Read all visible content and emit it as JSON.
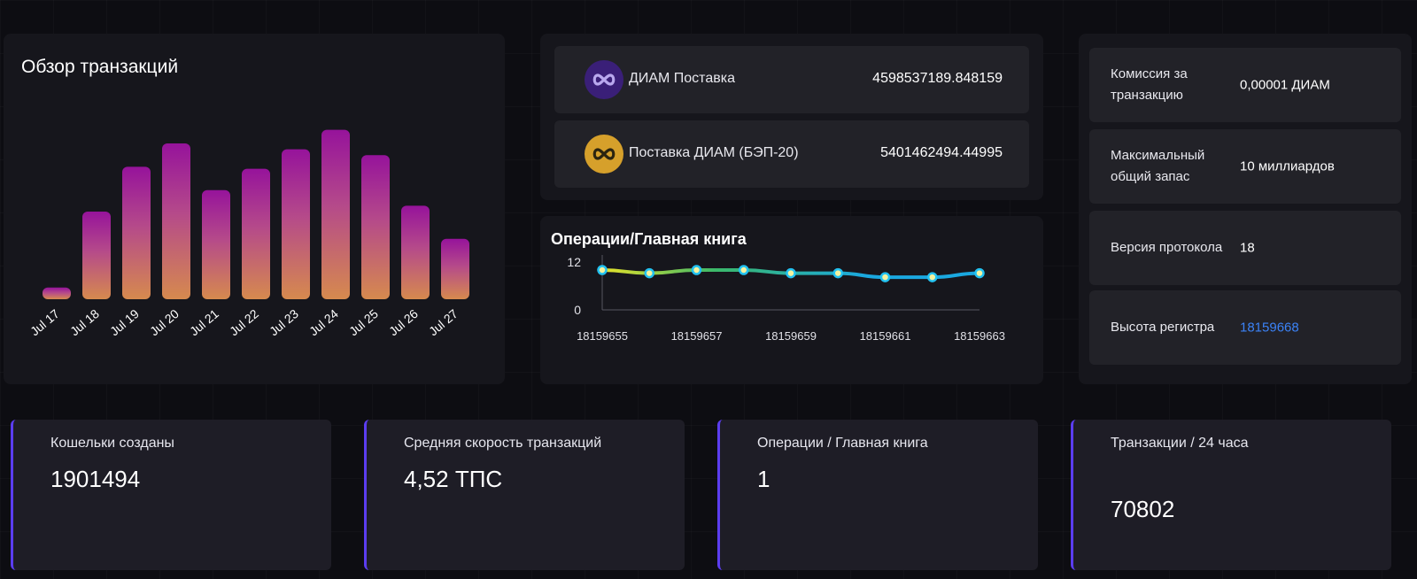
{
  "overview": {
    "title": "Обзор транзакций"
  },
  "chart_data": [
    {
      "type": "bar",
      "title": "Обзор транзакций",
      "categories": [
        "Jul 17",
        "Jul 18",
        "Jul 19",
        "Jul 20",
        "Jul 21",
        "Jul 22",
        "Jul 23",
        "Jul 24",
        "Jul 25",
        "Jul 26",
        "Jul 27"
      ],
      "values": [
        6,
        45,
        68,
        80,
        56,
        67,
        77,
        87,
        74,
        48,
        31
      ],
      "ylim": [
        0,
        100
      ],
      "colors": {
        "top": "#96139b",
        "bottom": "#d68a4e"
      }
    },
    {
      "type": "line",
      "title": "Операции/Главная книга",
      "x": [
        18159655,
        18159656,
        18159657,
        18159658,
        18159659,
        18159660,
        18159661,
        18159662,
        18159663
      ],
      "values": [
        10,
        9.2,
        10,
        10,
        9.2,
        9.2,
        8.2,
        8.2,
        9.2
      ],
      "xticks": [
        "18159655",
        "18159657",
        "18159659",
        "18159661",
        "18159663"
      ],
      "yticks": [
        "0",
        "12"
      ],
      "ylim": [
        0,
        12
      ],
      "colors": {
        "start": "#e6e22a",
        "mid": "#3bb86a",
        "end": "#1aa8e0",
        "marker_fill": "#f3f3a0",
        "marker_stroke": "#22c1f0"
      }
    }
  ],
  "supply": [
    {
      "label": "ДИАМ Поставка",
      "value": "4598537189.848159",
      "icon": "infinity-icon",
      "color": "#3a1f78"
    },
    {
      "label": "Поставка ДИАМ (БЭП-20)",
      "value": "5401462494.44995",
      "icon": "infinity-icon",
      "color": "#d6a02b"
    }
  ],
  "ops": {
    "title": "Операции/Главная книга"
  },
  "info": [
    {
      "label": "Комиссия за транзакцию",
      "value": "0,00001 ДИАМ"
    },
    {
      "label": "Максимальный общий запас",
      "value": "10 миллиардов"
    },
    {
      "label": "Версия протокола",
      "value": "18"
    },
    {
      "label": "Высота регистра",
      "value": "18159668"
    }
  ],
  "stats": [
    {
      "label": "Кошельки созданы",
      "value": "1901494"
    },
    {
      "label": "Средняя скорость транзакций",
      "value": "4,52 ТПС"
    },
    {
      "label": "Операции / Главная книга",
      "value": "1"
    },
    {
      "label": "Транзакции / 24 часа",
      "value": "70802"
    }
  ]
}
